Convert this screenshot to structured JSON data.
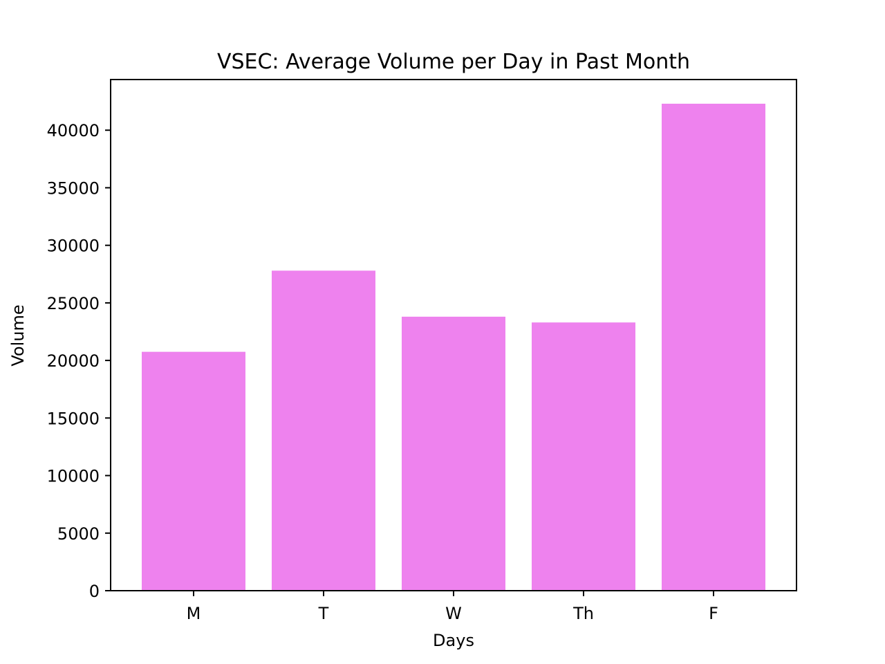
{
  "chart_data": {
    "type": "bar",
    "title": "VSEC: Average Volume per Day in Past Month",
    "xlabel": "Days",
    "ylabel": "Volume",
    "categories": [
      "M",
      "T",
      "W",
      "Th",
      "F"
    ],
    "values": [
      20750,
      27800,
      23800,
      23300,
      42300
    ],
    "ylim": [
      0,
      44400
    ],
    "yticks": [
      0,
      5000,
      10000,
      15000,
      20000,
      25000,
      30000,
      35000,
      40000
    ],
    "ytick_labels": [
      "0",
      "5000",
      "10000",
      "15000",
      "20000",
      "25000",
      "30000",
      "35000",
      "40000"
    ],
    "bar_color": "#ee82ee",
    "grid": false,
    "legend": "none"
  }
}
